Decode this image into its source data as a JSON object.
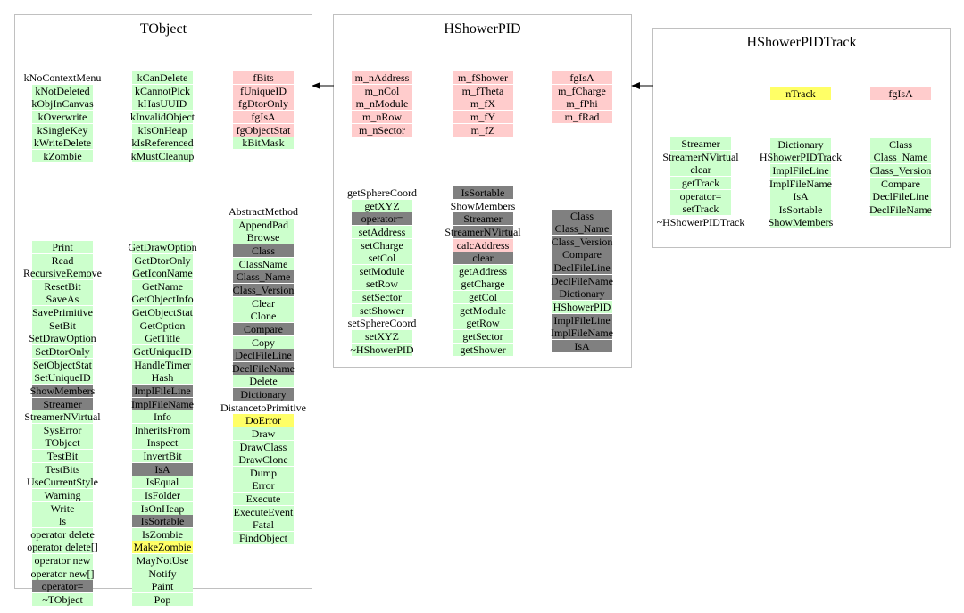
{
  "colors": {
    "method": "#ccffcc",
    "data_member": "#ffcccc",
    "inherited": "#808080",
    "highlight": "#ffff66",
    "box_border": "#c0c0c0",
    "arrow": "#000000"
  },
  "classes": [
    {
      "name": "TObject",
      "columns": [
        {
          "items": [
            {
              "text": "kNoContextMenu",
              "kind": "plain"
            },
            {
              "text": "kNotDeleted",
              "kind": "method"
            },
            {
              "text": "kObjInCanvas",
              "kind": "method"
            },
            {
              "text": "kOverwrite",
              "kind": "method"
            },
            {
              "text": "kSingleKey",
              "kind": "method"
            },
            {
              "text": "kWriteDelete",
              "kind": "method"
            },
            {
              "text": "kZombie",
              "kind": "method"
            },
            {
              "gap": true
            },
            {
              "text": "Print",
              "kind": "method"
            },
            {
              "text": "Read",
              "kind": "method"
            },
            {
              "text": "RecursiveRemove",
              "kind": "method"
            },
            {
              "text": "ResetBit",
              "kind": "method"
            },
            {
              "text": "SaveAs",
              "kind": "method"
            },
            {
              "text": "SavePrimitive",
              "kind": "method"
            },
            {
              "text": "SetBit",
              "kind": "method"
            },
            {
              "text": "SetDrawOption",
              "kind": "method"
            },
            {
              "text": "SetDtorOnly",
              "kind": "method"
            },
            {
              "text": "SetObjectStat",
              "kind": "method"
            },
            {
              "text": "SetUniqueID",
              "kind": "method"
            },
            {
              "text": "ShowMembers",
              "kind": "inherited"
            },
            {
              "text": "Streamer",
              "kind": "inherited"
            },
            {
              "text": "StreamerNVirtual",
              "kind": "method"
            },
            {
              "text": "SysError",
              "kind": "method"
            },
            {
              "text": "TObject",
              "kind": "method"
            },
            {
              "text": "TestBit",
              "kind": "method"
            },
            {
              "text": "TestBits",
              "kind": "method"
            },
            {
              "text": "UseCurrentStyle",
              "kind": "method"
            },
            {
              "text": "Warning",
              "kind": "method"
            },
            {
              "text": "Write",
              "kind": "method"
            },
            {
              "text": "ls",
              "kind": "method"
            },
            {
              "text": "operator delete",
              "kind": "method"
            },
            {
              "text": "operator delete[]",
              "kind": "method"
            },
            {
              "text": "operator new",
              "kind": "method"
            },
            {
              "text": "operator new[]",
              "kind": "method"
            },
            {
              "text": "operator=",
              "kind": "inherited"
            },
            {
              "text": "~TObject",
              "kind": "method"
            }
          ]
        },
        {
          "items": [
            {
              "text": "kCanDelete",
              "kind": "method"
            },
            {
              "text": "kCannotPick",
              "kind": "method"
            },
            {
              "text": "kHasUUID",
              "kind": "method"
            },
            {
              "text": "kInvalidObject",
              "kind": "method"
            },
            {
              "text": "kIsOnHeap",
              "kind": "method"
            },
            {
              "text": "kIsReferenced",
              "kind": "method"
            },
            {
              "text": "kMustCleanup",
              "kind": "method"
            },
            {
              "gap": true
            },
            {
              "text": "GetDrawOption",
              "kind": "method"
            },
            {
              "text": "GetDtorOnly",
              "kind": "method"
            },
            {
              "text": "GetIconName",
              "kind": "method"
            },
            {
              "text": "GetName",
              "kind": "method"
            },
            {
              "text": "GetObjectInfo",
              "kind": "method"
            },
            {
              "text": "GetObjectStat",
              "kind": "method"
            },
            {
              "text": "GetOption",
              "kind": "method"
            },
            {
              "text": "GetTitle",
              "kind": "method"
            },
            {
              "text": "GetUniqueID",
              "kind": "method"
            },
            {
              "text": "HandleTimer",
              "kind": "method"
            },
            {
              "text": "Hash",
              "kind": "method"
            },
            {
              "text": "ImplFileLine",
              "kind": "inherited"
            },
            {
              "text": "ImplFileName",
              "kind": "inherited"
            },
            {
              "text": "Info",
              "kind": "method"
            },
            {
              "text": "InheritsFrom",
              "kind": "method"
            },
            {
              "text": "Inspect",
              "kind": "method"
            },
            {
              "text": "InvertBit",
              "kind": "method"
            },
            {
              "text": "IsA",
              "kind": "inherited"
            },
            {
              "text": "IsEqual",
              "kind": "method"
            },
            {
              "text": "IsFolder",
              "kind": "method"
            },
            {
              "text": "IsOnHeap",
              "kind": "method"
            },
            {
              "text": "IsSortable",
              "kind": "inherited"
            },
            {
              "text": "IsZombie",
              "kind": "method"
            },
            {
              "text": "MakeZombie",
              "kind": "highlight"
            },
            {
              "text": "MayNotUse",
              "kind": "method"
            },
            {
              "text": "Notify",
              "kind": "method"
            },
            {
              "text": "Paint",
              "kind": "method"
            },
            {
              "text": "Pop",
              "kind": "method"
            }
          ]
        },
        {
          "items": [
            {
              "text": "fBits",
              "kind": "data_member"
            },
            {
              "text": "fUniqueID",
              "kind": "data_member"
            },
            {
              "text": "fgDtorOnly",
              "kind": "data_member"
            },
            {
              "text": "fgIsA",
              "kind": "data_member"
            },
            {
              "text": "fgObjectStat",
              "kind": "data_member"
            },
            {
              "text": "kBitMask",
              "kind": "method"
            },
            {
              "gap": true
            },
            {
              "gap": true
            },
            {
              "gap": true
            },
            {
              "text": "AbstractMethod",
              "kind": "plain"
            },
            {
              "text": "AppendPad",
              "kind": "method"
            },
            {
              "text": "Browse",
              "kind": "method"
            },
            {
              "text": "Class",
              "kind": "inherited"
            },
            {
              "text": "ClassName",
              "kind": "method"
            },
            {
              "text": "Class_Name",
              "kind": "inherited"
            },
            {
              "text": "Class_Version",
              "kind": "inherited"
            },
            {
              "text": "Clear",
              "kind": "method"
            },
            {
              "text": "Clone",
              "kind": "method"
            },
            {
              "text": "Compare",
              "kind": "inherited"
            },
            {
              "text": "Copy",
              "kind": "method"
            },
            {
              "text": "DeclFileLine",
              "kind": "inherited"
            },
            {
              "text": "DeclFileName",
              "kind": "inherited"
            },
            {
              "text": "Delete",
              "kind": "method"
            },
            {
              "text": "Dictionary",
              "kind": "inherited"
            },
            {
              "text": "DistancetoPrimitive",
              "kind": "plain"
            },
            {
              "text": "DoError",
              "kind": "highlight"
            },
            {
              "text": "Draw",
              "kind": "method"
            },
            {
              "text": "DrawClass",
              "kind": "method"
            },
            {
              "text": "DrawClone",
              "kind": "method"
            },
            {
              "text": "Dump",
              "kind": "method"
            },
            {
              "text": "Error",
              "kind": "method"
            },
            {
              "text": "Execute",
              "kind": "method"
            },
            {
              "text": "ExecuteEvent",
              "kind": "method"
            },
            {
              "text": "Fatal",
              "kind": "method"
            },
            {
              "text": "FindObject",
              "kind": "method"
            }
          ]
        }
      ]
    },
    {
      "name": "HShowerPID",
      "columns": [
        {
          "items": [
            {
              "text": "m_nAddress",
              "kind": "data_member"
            },
            {
              "text": "m_nCol",
              "kind": "data_member"
            },
            {
              "text": "m_nModule",
              "kind": "data_member"
            },
            {
              "text": "m_nRow",
              "kind": "data_member"
            },
            {
              "text": "m_nSector",
              "kind": "data_member"
            },
            {
              "gap": true
            },
            {
              "gap": true
            },
            {
              "gap": true
            },
            {
              "text": "getSphereCoord",
              "kind": "plain"
            },
            {
              "text": "getXYZ",
              "kind": "method"
            },
            {
              "text": "operator=",
              "kind": "inherited"
            },
            {
              "text": "setAddress",
              "kind": "method"
            },
            {
              "text": "setCharge",
              "kind": "method"
            },
            {
              "text": "setCol",
              "kind": "method"
            },
            {
              "text": "setModule",
              "kind": "method"
            },
            {
              "text": "setRow",
              "kind": "method"
            },
            {
              "text": "setSector",
              "kind": "method"
            },
            {
              "text": "setShower",
              "kind": "method"
            },
            {
              "text": "setSphereCoord",
              "kind": "plain"
            },
            {
              "text": "setXYZ",
              "kind": "method"
            },
            {
              "text": "~HShowerPID",
              "kind": "method"
            }
          ]
        },
        {
          "items": [
            {
              "text": "m_fShower",
              "kind": "data_member"
            },
            {
              "text": "m_fTheta",
              "kind": "data_member"
            },
            {
              "text": "m_fX",
              "kind": "data_member"
            },
            {
              "text": "m_fY",
              "kind": "data_member"
            },
            {
              "text": "m_fZ",
              "kind": "data_member"
            },
            {
              "gap": true
            },
            {
              "gap": true
            },
            {
              "gap": true
            },
            {
              "text": "IsSortable",
              "kind": "inherited"
            },
            {
              "text": "ShowMembers",
              "kind": "plain"
            },
            {
              "text": "Streamer",
              "kind": "inherited"
            },
            {
              "text": "StreamerNVirtual",
              "kind": "inherited"
            },
            {
              "text": "calcAddress",
              "kind": "data_member"
            },
            {
              "text": "clear",
              "kind": "inherited"
            },
            {
              "text": "getAddress",
              "kind": "method"
            },
            {
              "text": "getCharge",
              "kind": "method"
            },
            {
              "text": "getCol",
              "kind": "method"
            },
            {
              "text": "getModule",
              "kind": "method"
            },
            {
              "text": "getRow",
              "kind": "method"
            },
            {
              "text": "getSector",
              "kind": "method"
            },
            {
              "text": "getShower",
              "kind": "method"
            }
          ]
        },
        {
          "items": [
            {
              "text": "fgIsA",
              "kind": "data_member"
            },
            {
              "text": "m_fCharge",
              "kind": "data_member"
            },
            {
              "text": "m_fPhi",
              "kind": "data_member"
            },
            {
              "text": "m_fRad",
              "kind": "data_member"
            },
            {
              "gap": true
            },
            {
              "gap": true
            },
            {
              "gap": true
            },
            {
              "gap": true
            },
            {
              "gap": true
            },
            {
              "gap": true
            },
            {
              "text": "Class",
              "kind": "inherited"
            },
            {
              "text": "Class_Name",
              "kind": "inherited"
            },
            {
              "text": "Class_Version",
              "kind": "inherited"
            },
            {
              "text": "Compare",
              "kind": "inherited"
            },
            {
              "text": "DeclFileLine",
              "kind": "inherited"
            },
            {
              "text": "DeclFileName",
              "kind": "inherited"
            },
            {
              "text": "Dictionary",
              "kind": "inherited"
            },
            {
              "text": "HShowerPID",
              "kind": "method"
            },
            {
              "text": "ImplFileLine",
              "kind": "inherited"
            },
            {
              "text": "ImplFileName",
              "kind": "inherited"
            },
            {
              "text": "IsA",
              "kind": "inherited"
            }
          ]
        }
      ]
    },
    {
      "name": "HShowerPIDTrack",
      "columns": [
        {
          "items": [
            {
              "gap": true
            },
            {
              "gap": true
            },
            {
              "gap": true
            },
            {
              "gap": true
            },
            {
              "text": "Streamer",
              "kind": "method"
            },
            {
              "text": "StreamerNVirtual",
              "kind": "method"
            },
            {
              "text": "clear",
              "kind": "method"
            },
            {
              "text": "getTrack",
              "kind": "method"
            },
            {
              "text": "operator=",
              "kind": "method"
            },
            {
              "text": "setTrack",
              "kind": "method"
            },
            {
              "text": "~HShowerPIDTrack",
              "kind": "plain"
            }
          ]
        },
        {
          "items": [
            {
              "text": "nTrack",
              "kind": "highlight"
            },
            {
              "gap": true
            },
            {
              "gap": true
            },
            {
              "gap": true
            },
            {
              "text": "Dictionary",
              "kind": "method"
            },
            {
              "text": "HShowerPIDTrack",
              "kind": "method"
            },
            {
              "text": "ImplFileLine",
              "kind": "method"
            },
            {
              "text": "ImplFileName",
              "kind": "method"
            },
            {
              "text": "IsA",
              "kind": "method"
            },
            {
              "text": "IsSortable",
              "kind": "method"
            },
            {
              "text": "ShowMembers",
              "kind": "method"
            }
          ]
        },
        {
          "items": [
            {
              "text": "fgIsA",
              "kind": "data_member"
            },
            {
              "gap": true
            },
            {
              "gap": true
            },
            {
              "gap": true
            },
            {
              "text": "Class",
              "kind": "method"
            },
            {
              "text": "Class_Name",
              "kind": "method"
            },
            {
              "text": "Class_Version",
              "kind": "method"
            },
            {
              "text": "Compare",
              "kind": "method"
            },
            {
              "text": "DeclFileLine",
              "kind": "method"
            },
            {
              "text": "DeclFileName",
              "kind": "method"
            }
          ]
        }
      ]
    }
  ],
  "inheritance": [
    {
      "from": "HShowerPID",
      "to": "TObject"
    },
    {
      "from": "HShowerPIDTrack",
      "to": "HShowerPID"
    }
  ]
}
